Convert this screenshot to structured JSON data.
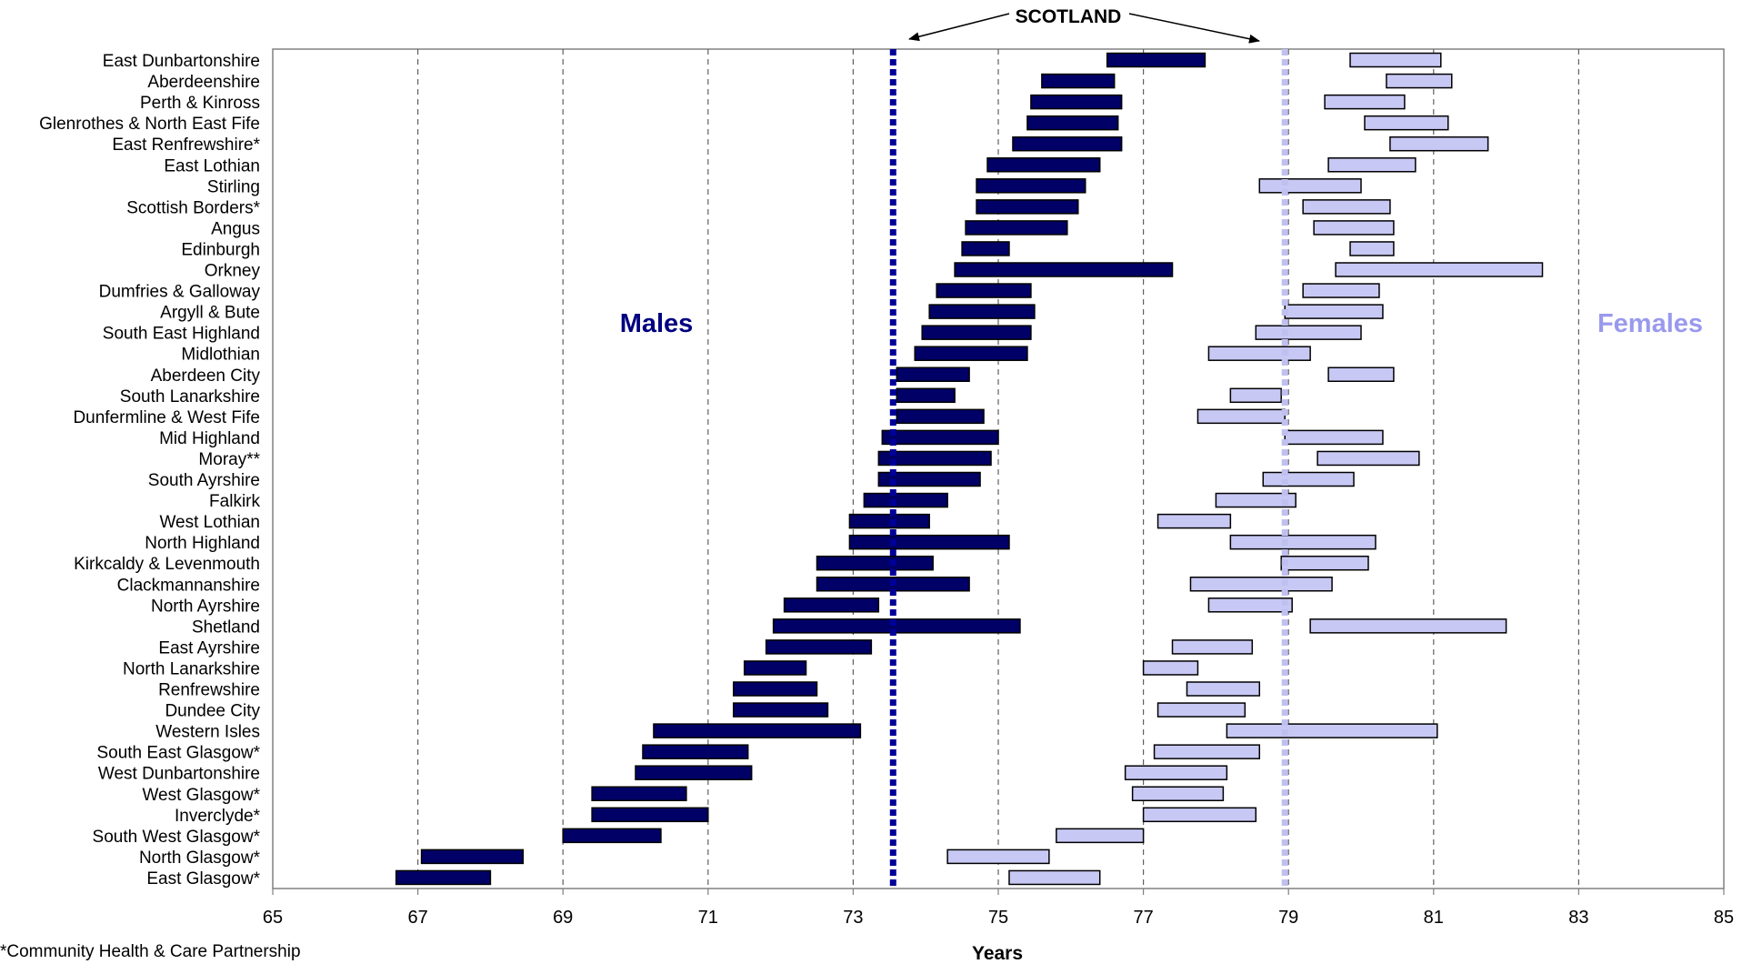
{
  "chart_data": {
    "type": "bar",
    "subtype": "floating-range",
    "xlabel": "Years",
    "xlim": [
      65,
      85
    ],
    "xticks": [
      65,
      67,
      69,
      71,
      73,
      75,
      77,
      79,
      81,
      83,
      85
    ],
    "grid": "vertical-dashed",
    "categories": [
      "East Dunbartonshire",
      "Aberdeenshire",
      "Perth & Kinross",
      "Glenrothes & North East Fife",
      "East Renfrewshire*",
      "East Lothian",
      "Stirling",
      "Scottish Borders*",
      "Angus",
      "Edinburgh",
      "Orkney",
      "Dumfries & Galloway",
      "Argyll & Bute",
      "South East Highland",
      "Midlothian",
      "Aberdeen City",
      "South Lanarkshire",
      "Dunfermline & West Fife",
      "Mid Highland",
      "Moray**",
      "South Ayrshire",
      "Falkirk",
      "West Lothian",
      "North Highland",
      "Kirkcaldy & Levenmouth",
      "Clackmannanshire",
      "North Ayrshire",
      "Shetland",
      "East Ayrshire",
      "North Lanarkshire",
      "Renfrewshire",
      "Dundee City",
      "Western Isles",
      "South East Glasgow*",
      "West Dunbartonshire",
      "West Glasgow*",
      "Inverclyde*",
      "South West Glasgow*",
      "North Glasgow*",
      "East Glasgow*"
    ],
    "series": [
      {
        "name": "Males",
        "color": "#000066",
        "ranges": [
          [
            76.5,
            77.85
          ],
          [
            75.6,
            76.6
          ],
          [
            75.45,
            76.7
          ],
          [
            75.4,
            76.65
          ],
          [
            75.2,
            76.7
          ],
          [
            74.85,
            76.4
          ],
          [
            74.7,
            76.2
          ],
          [
            74.7,
            76.1
          ],
          [
            74.55,
            75.95
          ],
          [
            74.5,
            75.15
          ],
          [
            74.4,
            77.4
          ],
          [
            74.15,
            75.45
          ],
          [
            74.05,
            75.5
          ],
          [
            73.95,
            75.45
          ],
          [
            73.85,
            75.4
          ],
          [
            73.6,
            74.6
          ],
          [
            73.6,
            74.4
          ],
          [
            73.6,
            74.8
          ],
          [
            73.4,
            75.0
          ],
          [
            73.35,
            74.9
          ],
          [
            73.35,
            74.75
          ],
          [
            73.15,
            74.3
          ],
          [
            72.95,
            74.05
          ],
          [
            72.95,
            75.15
          ],
          [
            72.5,
            74.1
          ],
          [
            72.5,
            74.6
          ],
          [
            72.05,
            73.35
          ],
          [
            71.9,
            75.3
          ],
          [
            71.8,
            73.25
          ],
          [
            71.5,
            72.35
          ],
          [
            71.35,
            72.5
          ],
          [
            71.35,
            72.65
          ],
          [
            70.25,
            73.1
          ],
          [
            70.1,
            71.55
          ],
          [
            70.0,
            71.6
          ],
          [
            69.4,
            70.7
          ],
          [
            69.4,
            71.0
          ],
          [
            69.0,
            70.35
          ],
          [
            67.05,
            68.45
          ],
          [
            66.7,
            68.0
          ]
        ]
      },
      {
        "name": "Females",
        "color": "#c8c8f5",
        "ranges": [
          [
            79.85,
            81.1
          ],
          [
            80.35,
            81.25
          ],
          [
            79.5,
            80.6
          ],
          [
            80.05,
            81.2
          ],
          [
            80.4,
            81.75
          ],
          [
            79.55,
            80.75
          ],
          [
            78.6,
            80.0
          ],
          [
            79.2,
            80.4
          ],
          [
            79.35,
            80.45
          ],
          [
            79.85,
            80.45
          ],
          [
            79.65,
            82.5
          ],
          [
            79.2,
            80.25
          ],
          [
            78.95,
            80.3
          ],
          [
            78.55,
            80.0
          ],
          [
            77.9,
            79.3
          ],
          [
            79.55,
            80.45
          ],
          [
            78.2,
            78.9
          ],
          [
            77.75,
            78.95
          ],
          [
            78.95,
            80.3
          ],
          [
            79.4,
            80.8
          ],
          [
            78.65,
            79.9
          ],
          [
            78.0,
            79.1
          ],
          [
            77.2,
            78.2
          ],
          [
            78.2,
            80.2
          ],
          [
            78.9,
            80.1
          ],
          [
            77.65,
            79.6
          ],
          [
            77.9,
            79.05
          ],
          [
            79.3,
            82.0
          ],
          [
            77.4,
            78.5
          ],
          [
            77.0,
            77.75
          ],
          [
            77.6,
            78.6
          ],
          [
            77.2,
            78.4
          ],
          [
            78.15,
            81.05
          ],
          [
            77.15,
            78.6
          ],
          [
            76.75,
            78.15
          ],
          [
            76.85,
            78.1
          ],
          [
            77.0,
            78.55
          ],
          [
            75.8,
            77.0
          ],
          [
            74.3,
            75.7
          ],
          [
            75.15,
            76.4
          ]
        ]
      }
    ],
    "reference_lines": [
      {
        "group": "Scotland males",
        "value": 73.55,
        "color": "#000099",
        "style": "dotted"
      },
      {
        "group": "Scotland females",
        "value": 78.95,
        "color": "#c0c0f0",
        "style": "dotted"
      }
    ],
    "annotations": {
      "scotland": "SCOTLAND",
      "males": "Males",
      "females": "Females"
    },
    "colors": {
      "males_text": "#000080",
      "females_text": "#9999ee",
      "plot_border": "#808080",
      "grid": "#606060"
    }
  },
  "footnote": "*Community Health & Care Partnership"
}
